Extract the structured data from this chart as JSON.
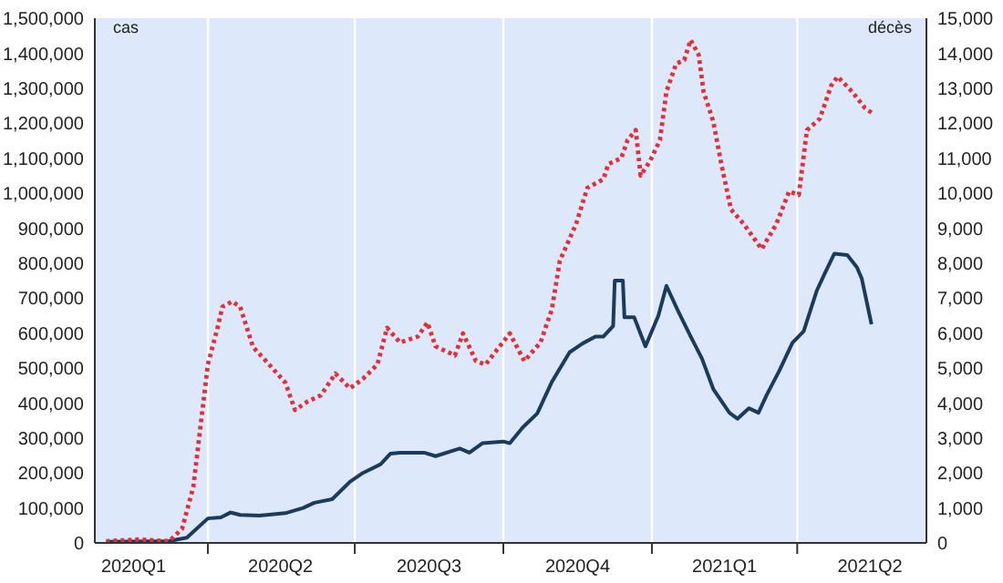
{
  "chart_data": {
    "type": "line",
    "ylabel": "cas",
    "y2label": "décès",
    "grid": true,
    "marker": "none",
    "xlim": [
      "2020-01-22",
      "2021-06-20"
    ],
    "xticks": [
      {
        "value": "2020-02-15",
        "label": "2020Q1"
      },
      {
        "value": "2020-04-01",
        "label": null
      },
      {
        "value": "2020-05-16",
        "label": "2020Q2"
      },
      {
        "value": "2020-07-01",
        "label": null
      },
      {
        "value": "2020-08-16",
        "label": "2020Q3"
      },
      {
        "value": "2020-10-01",
        "label": null
      },
      {
        "value": "2020-11-16",
        "label": "2020Q4"
      },
      {
        "value": "2021-01-01",
        "label": null
      },
      {
        "value": "2021-02-15",
        "label": "2021Q1"
      },
      {
        "value": "2021-04-01",
        "label": null
      },
      {
        "value": "2021-05-16",
        "label": "2021Q2"
      }
    ],
    "ylim": [
      0,
      1500000
    ],
    "yticks": [
      {
        "value": 0,
        "label": "0"
      },
      {
        "value": 100000,
        "label": "100,000"
      },
      {
        "value": 200000,
        "label": "200,000"
      },
      {
        "value": 300000,
        "label": "300,000"
      },
      {
        "value": 400000,
        "label": "400,000"
      },
      {
        "value": 500000,
        "label": "500,000"
      },
      {
        "value": 600000,
        "label": "600,000"
      },
      {
        "value": 700000,
        "label": "700,000"
      },
      {
        "value": 800000,
        "label": "800,000"
      },
      {
        "value": 900000,
        "label": "900,000"
      },
      {
        "value": 1000000,
        "label": "1,000,000"
      },
      {
        "value": 1100000,
        "label": "1,100,000"
      },
      {
        "value": 1200000,
        "label": "1,200,000"
      },
      {
        "value": 1300000,
        "label": "1,300,000"
      },
      {
        "value": 1400000,
        "label": "1,400,000"
      },
      {
        "value": 1500000,
        "label": "1,500,000"
      }
    ],
    "y2lim": [
      0,
      15000
    ],
    "y2ticks": [
      {
        "value": 0,
        "label": "0"
      },
      {
        "value": 1000,
        "label": "1,000"
      },
      {
        "value": 2000,
        "label": "2,000"
      },
      {
        "value": 3000,
        "label": "3,000"
      },
      {
        "value": 4000,
        "label": "4,000"
      },
      {
        "value": 5000,
        "label": "5,000"
      },
      {
        "value": 6000,
        "label": "6,000"
      },
      {
        "value": 7000,
        "label": "7,000"
      },
      {
        "value": 8000,
        "label": "8,000"
      },
      {
        "value": 9000,
        "label": "9,000"
      },
      {
        "value": 10000,
        "label": "10,000"
      },
      {
        "value": 11000,
        "label": "11,000"
      },
      {
        "value": 12000,
        "label": "12,000"
      },
      {
        "value": 13000,
        "label": "13,000"
      },
      {
        "value": 14000,
        "label": "14,000"
      },
      {
        "value": 15000,
        "label": "15,000"
      }
    ],
    "series": [
      {
        "color": "#1b3b5a",
        "line_style": "solid",
        "x": [
          "2020-01-29",
          "2020-03-08",
          "2020-03-19",
          "2020-04-01",
          "2020-04-09",
          "2020-04-15",
          "2020-04-21",
          "2020-05-03",
          "2020-05-19",
          "2020-05-30",
          "2020-06-06",
          "2020-06-17",
          "2020-06-28",
          "2020-07-06",
          "2020-07-17",
          "2020-07-23",
          "2020-07-29",
          "2020-08-13",
          "2020-08-20",
          "2020-09-04",
          "2020-09-10",
          "2020-09-18",
          "2020-10-01",
          "2020-10-05",
          "2020-10-13",
          "2020-10-22",
          "2020-10-31",
          "2020-11-11",
          "2020-11-19",
          "2020-11-27",
          "2020-12-02",
          "2020-12-08",
          "2020-12-09",
          "2020-12-14",
          "2020-12-15",
          "2020-12-21",
          "2020-12-28",
          "2021-01-05",
          "2021-01-10",
          "2021-01-17",
          "2021-01-25",
          "2021-02-01",
          "2021-02-08",
          "2021-02-18",
          "2021-02-23",
          "2021-03-02",
          "2021-03-08",
          "2021-03-13",
          "2021-03-21",
          "2021-03-29",
          "2021-04-05",
          "2021-04-13",
          "2021-04-18",
          "2021-04-24",
          "2021-05-02",
          "2021-05-08",
          "2021-05-11",
          "2021-05-17"
        ],
        "values": [
          3000,
          5000,
          15000,
          70000,
          73000,
          87000,
          80000,
          78000,
          85000,
          100000,
          115000,
          125000,
          175000,
          200000,
          225000,
          255000,
          258000,
          258000,
          248000,
          270000,
          258000,
          285000,
          290000,
          285000,
          330000,
          370000,
          460000,
          545000,
          570000,
          590000,
          590000,
          620000,
          750000,
          750000,
          645000,
          645000,
          562000,
          650000,
          735000,
          665000,
          590000,
          527000,
          440000,
          372000,
          355000,
          385000,
          372000,
          422000,
          493000,
          572000,
          605000,
          720000,
          770000,
          827000,
          823000,
          788000,
          755000,
          625000
        ]
      },
      {
        "color": "#e0303a",
        "line_style": "dotted",
        "axis": "y2",
        "x": [
          "2020-01-29",
          "2020-02-19",
          "2020-03-08",
          "2020-03-16",
          "2020-03-23",
          "2020-04-01",
          "2020-04-07",
          "2020-04-10",
          "2020-04-16",
          "2020-04-21",
          "2020-04-29",
          "2020-05-07",
          "2020-05-19",
          "2020-05-25",
          "2020-06-02",
          "2020-06-10",
          "2020-06-19",
          "2020-06-28",
          "2020-07-06",
          "2020-07-15",
          "2020-07-21",
          "2020-07-29",
          "2020-08-09",
          "2020-08-15",
          "2020-08-20",
          "2020-09-01",
          "2020-09-06",
          "2020-09-14",
          "2020-09-20",
          "2020-09-23",
          "2020-10-05",
          "2020-10-14",
          "2020-10-24",
          "2020-10-31",
          "2020-11-05",
          "2020-11-15",
          "2020-11-22",
          "2020-12-02",
          "2020-12-05",
          "2020-12-13",
          "2020-12-17",
          "2020-12-22",
          "2020-12-25",
          "2020-12-31",
          "2021-01-06",
          "2021-01-10",
          "2021-01-16",
          "2021-01-21",
          "2021-01-25",
          "2021-01-30",
          "2021-02-02",
          "2021-02-08",
          "2021-02-13",
          "2021-02-19",
          "2021-02-27",
          "2021-03-10",
          "2021-03-19",
          "2021-03-27",
          "2021-04-02",
          "2021-04-07",
          "2021-04-15",
          "2021-04-22",
          "2021-04-26",
          "2021-05-05",
          "2021-05-13",
          "2021-05-17"
        ],
        "values": [
          50,
          100,
          50,
          400,
          1600,
          5100,
          6150,
          6750,
          6900,
          6750,
          5600,
          5200,
          4580,
          3800,
          4050,
          4220,
          4840,
          4420,
          4690,
          5100,
          6150,
          5730,
          5900,
          6300,
          5620,
          5360,
          5990,
          5200,
          5100,
          5280,
          5990,
          5200,
          5730,
          6670,
          8070,
          9110,
          10150,
          10400,
          10830,
          11000,
          11520,
          11800,
          10500,
          10930,
          11520,
          12900,
          13700,
          13800,
          14380,
          13950,
          12900,
          12050,
          10830,
          9530,
          9110,
          8400,
          9110,
          10050,
          9950,
          11800,
          12130,
          13070,
          13330,
          12900,
          12430,
          12300
        ]
      }
    ]
  }
}
